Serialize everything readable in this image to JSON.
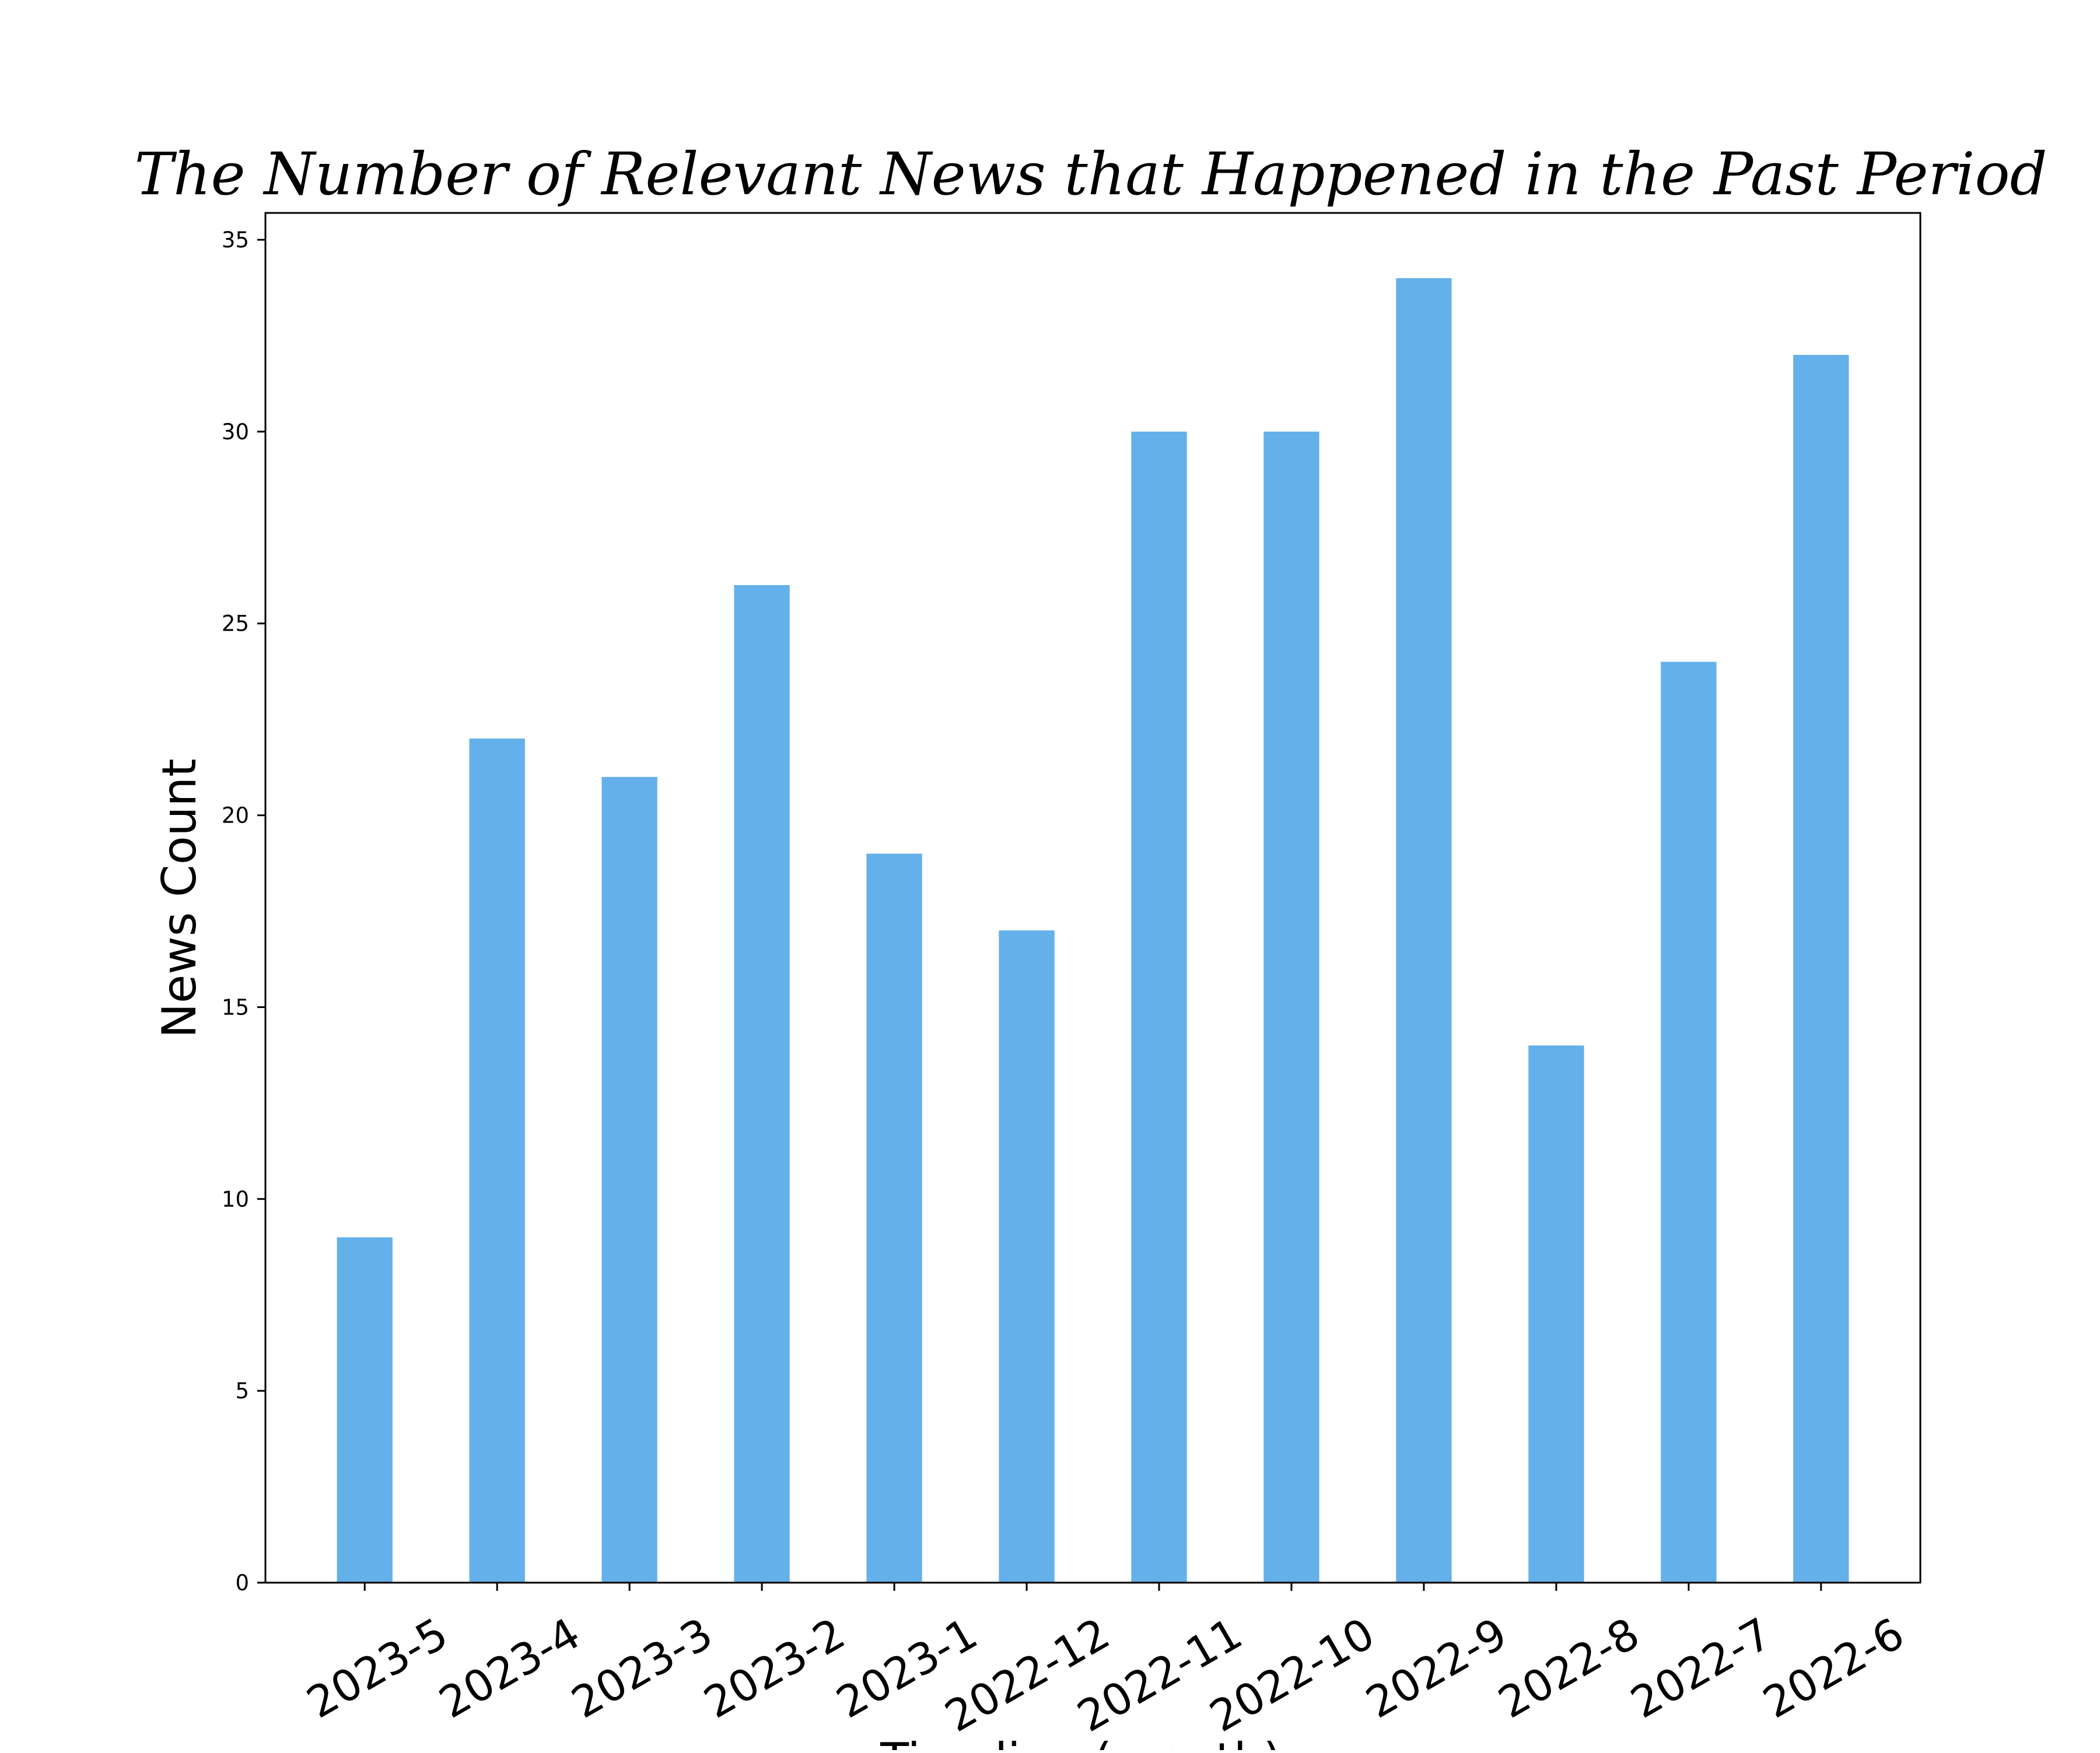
{
  "chart_data": {
    "type": "bar",
    "title": "The Number of Relevant News that Happened in the Past Period",
    "xlabel": "Timeline (month)",
    "ylabel": "News Count",
    "categories": [
      "2023-5",
      "2023-4",
      "2023-3",
      "2023-2",
      "2023-1",
      "2022-12",
      "2022-11",
      "2022-10",
      "2022-9",
      "2022-8",
      "2022-7",
      "2022-6"
    ],
    "values": [
      9,
      22,
      21,
      26,
      19,
      17,
      30,
      30,
      34,
      14,
      24,
      32
    ],
    "ylim": [
      0,
      35.7
    ],
    "yticks": [
      0,
      5,
      10,
      15,
      20,
      25,
      30,
      35
    ],
    "grid": false,
    "legend": "none",
    "bar_color": "#63b0ea",
    "axis_color": "#000000"
  }
}
